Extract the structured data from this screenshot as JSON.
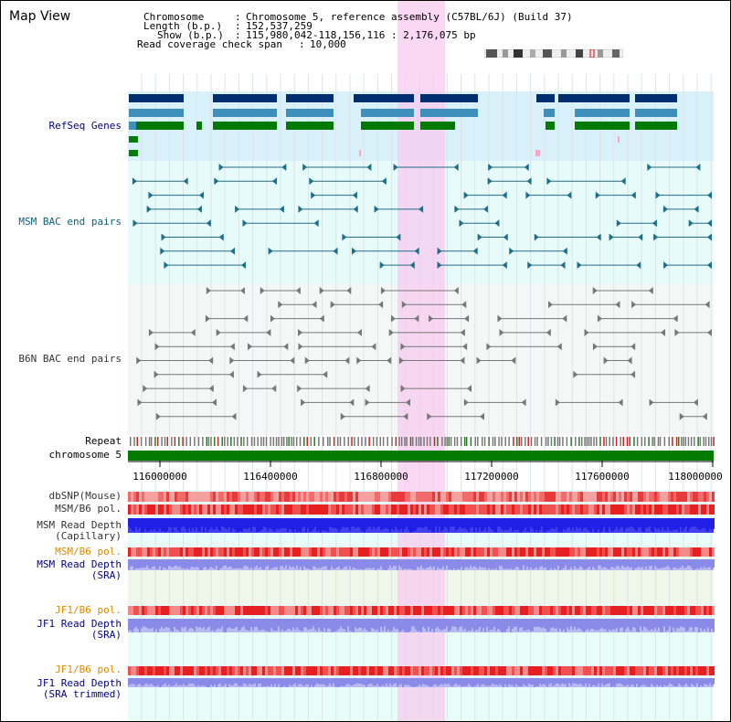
{
  "title": "Map View",
  "info": {
    "chromosome_label": "Chromosome",
    "chromosome_value": "Chromosome 5, reference assembly (C57BL/6J) (Build 37)",
    "length_label": "Length (b.p.)",
    "length_value": "152,537,259",
    "show_label": "Show (b.p.)",
    "show_value": "115,980,042-118,156,116 : 2,176,075 bp",
    "coverage_label": "Read coverage check span",
    "coverage_value": "10,000"
  },
  "tracks": {
    "refseq": "RefSeq Genes",
    "msm_bac": "MSM BAC end pairs",
    "b6n_bac": "B6N BAC end pairs",
    "repeat": "Repeat",
    "chromosome": "chromosome 5",
    "dbsnp": "dbSNP(Mouse)",
    "msm_b6_pol": "MSM/B6 pol.",
    "msm_depth_cap_1": "MSM Read Depth",
    "msm_depth_cap_2": "(Capillary)",
    "msm_b6_pol_2": "MSM/B6 pol.",
    "msm_depth_sra_1": "MSM Read Depth",
    "msm_depth_sra_2": "(SRA)",
    "jf1_b6_pol": "JF1/B6 pol.",
    "jf1_depth_sra_1": "JF1 Read Depth",
    "jf1_depth_sra_2": "(SRA)",
    "jf1_b6_pol_2": "JF1/B6 pol.",
    "jf1_depth_trim_1": "JF1 Read Depth",
    "jf1_depth_trim_2": "(SRA trimmed)"
  },
  "axis": {
    "ticks": [
      "116000000",
      "116400000",
      "116800000",
      "117200000",
      "117600000",
      "118000000"
    ]
  },
  "colors": {
    "refseq_dark": "#002e6e",
    "refseq_mid": "#3f8fbd",
    "refseq_green": "#007a00",
    "bac_teal": "#1d6e8a",
    "bac_gray": "#777777",
    "highlight": "#f8c8f0",
    "chromosome_bar": "#007a00",
    "depth_blue": "#1f1fe6",
    "depth_light": "#8a8ae8"
  }
}
